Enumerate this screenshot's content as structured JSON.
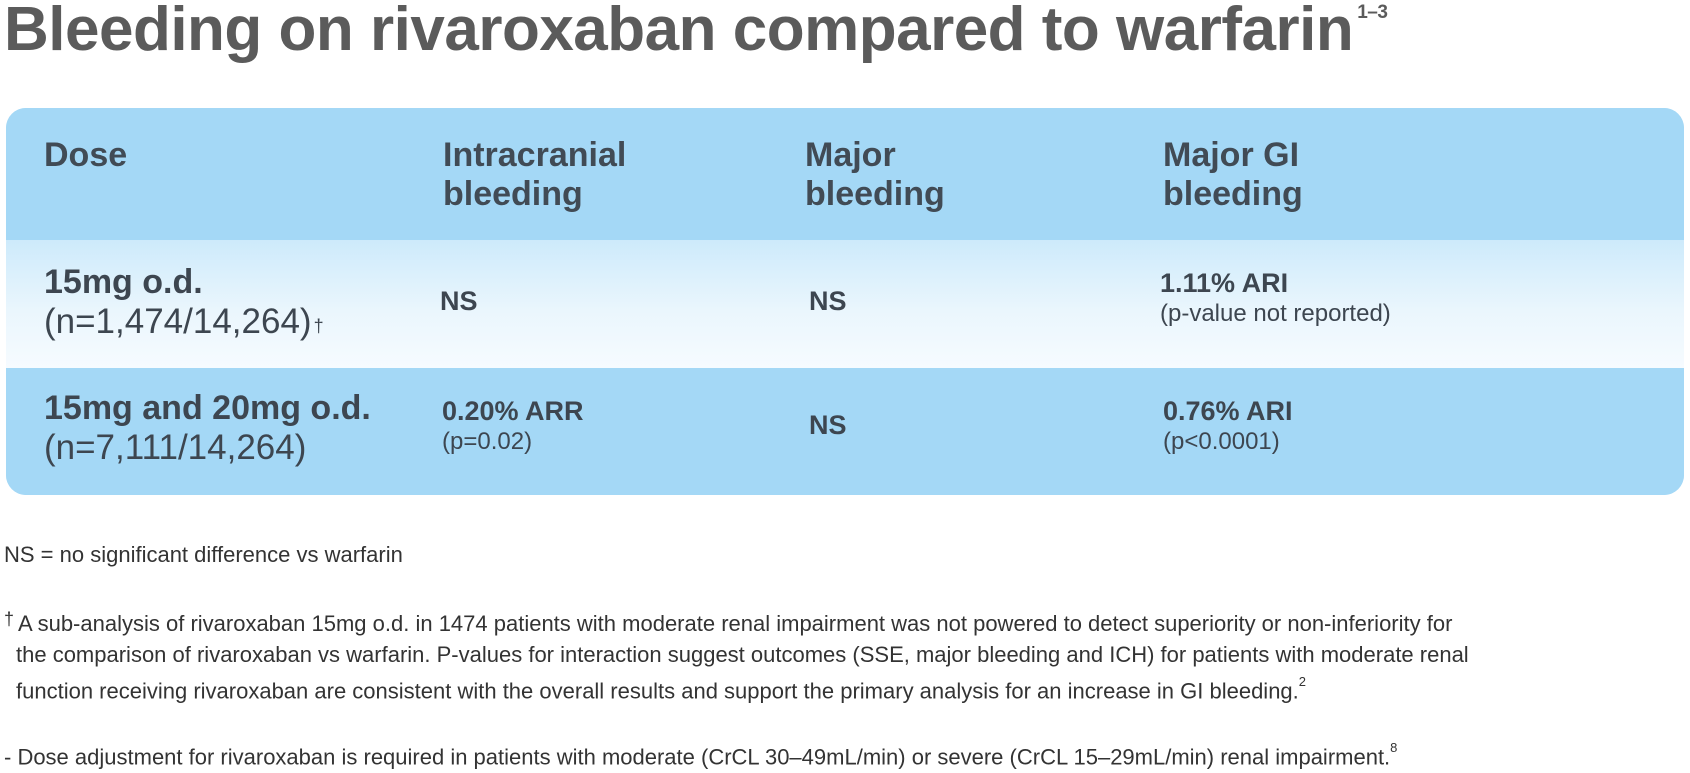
{
  "title": {
    "text": "Bleeding on rivaroxaban compared to warfarin",
    "sup": "1–3"
  },
  "table": {
    "headers": [
      [
        "Dose"
      ],
      [
        "Intracranial",
        "bleeding"
      ],
      [
        "Major",
        "bleeding"
      ],
      [
        "Major GI",
        "bleeding"
      ]
    ],
    "rows": [
      {
        "dose_main": "15mg o.d.",
        "dose_sub": "(n=1,474/14,264)",
        "dose_sup": "†",
        "intracranial": {
          "main": "NS",
          "sub": ""
        },
        "major": {
          "main": "NS",
          "sub": ""
        },
        "major_gi": {
          "main": "1.11% ARI",
          "sub": "(p-value not reported)"
        }
      },
      {
        "dose_main": "15mg and 20mg o.d.",
        "dose_sub": "(n=7,111/14,264)",
        "dose_sup": "",
        "intracranial": {
          "main": "0.20% ARR",
          "sub": "(p=0.02)"
        },
        "major": {
          "main": "NS",
          "sub": ""
        },
        "major_gi": {
          "main": "0.76% ARI",
          "sub": "(p<0.0001)"
        }
      }
    ]
  },
  "notes": {
    "ns_definition": "NS = no significant difference vs warfarin",
    "dagger_symbol": "†",
    "dagger_lines": [
      "A sub-analysis of rivaroxaban 15mg o.d. in 1474 patients with moderate renal impairment was not powered to detect superiority or non-inferiority for",
      "the comparison of rivaroxaban vs warfarin. P-values for interaction suggest outcomes (SSE, major bleeding and ICH) for patients with moderate renal",
      "function receiving rivaroxaban are consistent with the overall results and support the primary analysis for an increase in GI bleeding."
    ],
    "dagger_ref": "2",
    "dose_adjustment": "-  Dose adjustment for rivaroxaban is required in patients with moderate (CrCL 30–49mL/min) or severe (CrCL 15–29mL/min) renal impairment.",
    "dose_adjustment_ref": "8"
  },
  "colors": {
    "header_bg": "#a4d8f6",
    "row_light": "#eaf6fd",
    "title": "#5b5b5b"
  }
}
